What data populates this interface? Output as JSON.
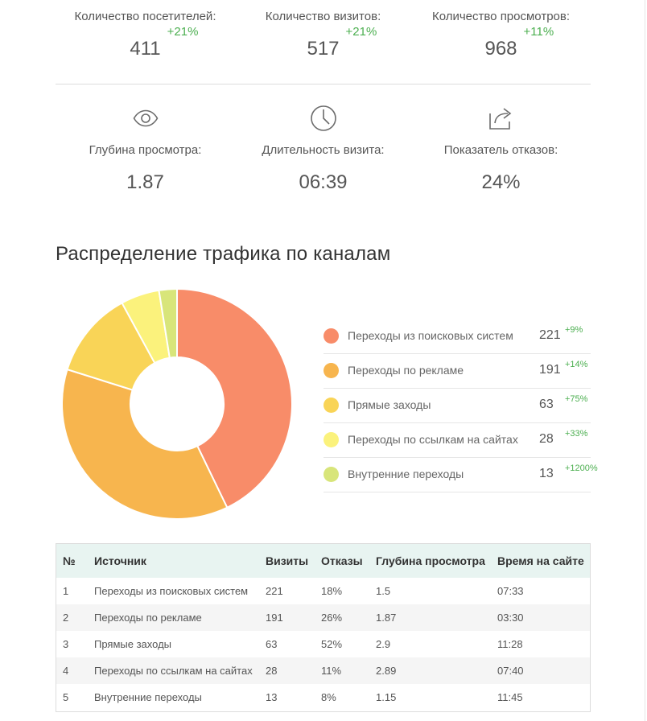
{
  "stats": [
    {
      "label": "Количество посетителей:",
      "value": "411",
      "delta": "+21%"
    },
    {
      "label": "Количество визитов:",
      "value": "517",
      "delta": "+21%"
    },
    {
      "label": "Количество просмотров:",
      "value": "968",
      "delta": "+11%"
    }
  ],
  "metrics": [
    {
      "icon": "eye-icon",
      "label": "Глубина просмотра:",
      "value": "1.87"
    },
    {
      "icon": "clock-icon",
      "label": "Длительность визита:",
      "value": "06:39"
    },
    {
      "icon": "share-icon",
      "label": "Показатель отказов:",
      "value": "24%"
    }
  ],
  "section_title": "Распределение трафика по каналам",
  "colors": {
    "delta_green": "#4caf50",
    "slices": [
      "#f88c69",
      "#f7b54e",
      "#f9d457",
      "#fbf27c",
      "#d8e57a"
    ]
  },
  "chart_data": {
    "type": "pie",
    "variant": "donut",
    "categories": [
      "Переходы из поисковых систем",
      "Переходы по рекламе",
      "Прямые заходы",
      "Переходы по ссылкам на сайтах",
      "Внутренние переходы"
    ],
    "values": [
      221,
      191,
      63,
      28,
      13
    ],
    "deltas": [
      "+9%",
      "+14%",
      "+75%",
      "+33%",
      "+1200%"
    ],
    "legend_position": "right"
  },
  "table": {
    "headers": [
      "№",
      "Источник",
      "Визиты",
      "Отказы",
      "Глубина просмотра",
      "Время на сайте"
    ],
    "rows": [
      [
        "1",
        "Переходы из поисковых систем",
        "221",
        "18%",
        "1.5",
        "07:33"
      ],
      [
        "2",
        "Переходы по рекламе",
        "191",
        "26%",
        "1.87",
        "03:30"
      ],
      [
        "3",
        "Прямые заходы",
        "63",
        "52%",
        "2.9",
        "11:28"
      ],
      [
        "4",
        "Переходы по ссылкам на сайтах",
        "28",
        "11%",
        "2.89",
        "07:40"
      ],
      [
        "5",
        "Внутренние переходы",
        "13",
        "8%",
        "1.15",
        "11:45"
      ]
    ]
  }
}
